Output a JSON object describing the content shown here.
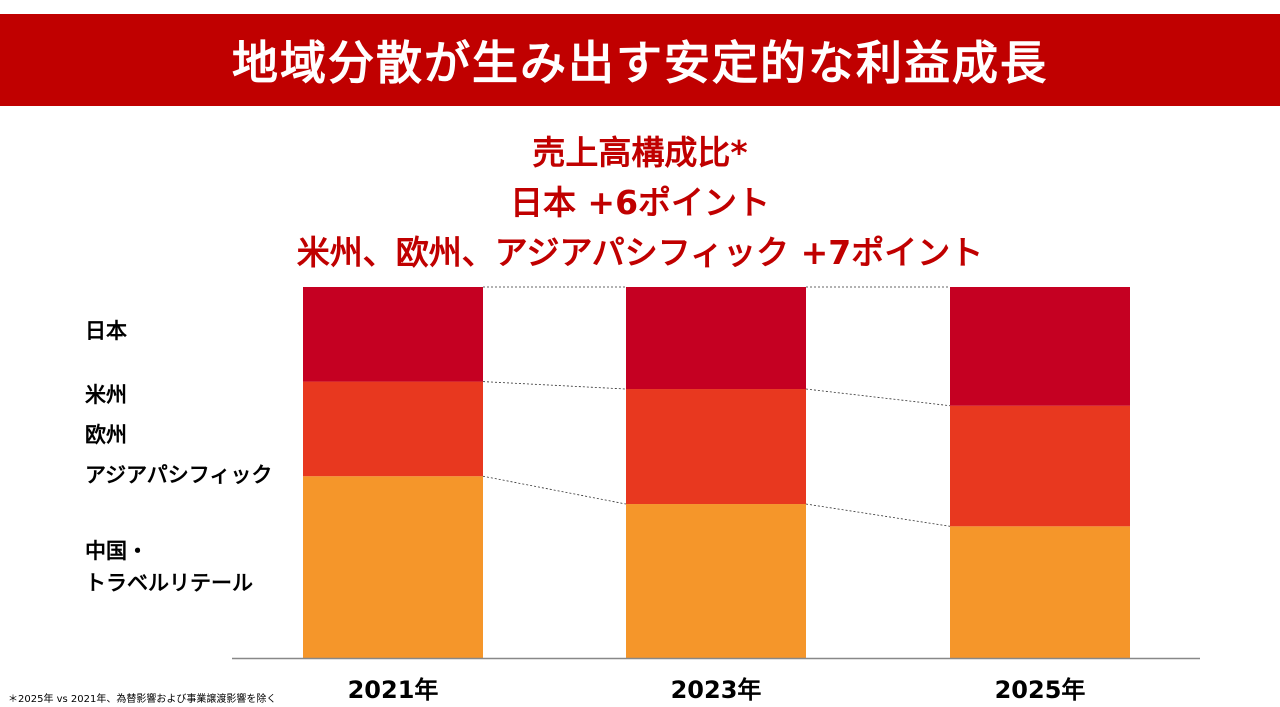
{
  "title": "地域分散が生み出す安定的な利益成長",
  "subtitle": {
    "line1": "売上高構成比*",
    "line2": "日本 +6ポイント",
    "line3": "米州、欧州、アジアパシフィック +7ポイント"
  },
  "legend": {
    "japan": "日本",
    "americas": "米州",
    "europe": "欧州",
    "apac": "アジアパシフィック",
    "china_line1": "中国・",
    "china_line2": "トラベルリテール"
  },
  "footnote": "＊2025年 vs 2021年、為替影響および事業譲渡影響を除く",
  "colors": {
    "title_bar": "#c00000",
    "japan": "#c50022",
    "americas_europe_apac": "#e8381f",
    "china_travel_retail": "#f5962a"
  },
  "chart_data": {
    "type": "bar",
    "stacked": true,
    "percent_stacked": true,
    "title": "売上高構成比*",
    "categories": [
      "2021年",
      "2023年",
      "2025年"
    ],
    "series": [
      {
        "name": "中国・トラベルリテール",
        "color": "#f5962a",
        "values": [
          49,
          41.5,
          35.5
        ]
      },
      {
        "name": "米州、欧州、アジアパシフィック",
        "color": "#e8381f",
        "values": [
          25.5,
          31,
          32.5
        ]
      },
      {
        "name": "日本",
        "color": "#c50022",
        "values": [
          25.5,
          27.5,
          32
        ]
      }
    ],
    "ylim": [
      0,
      100
    ],
    "xlabel": "",
    "ylabel": ""
  }
}
